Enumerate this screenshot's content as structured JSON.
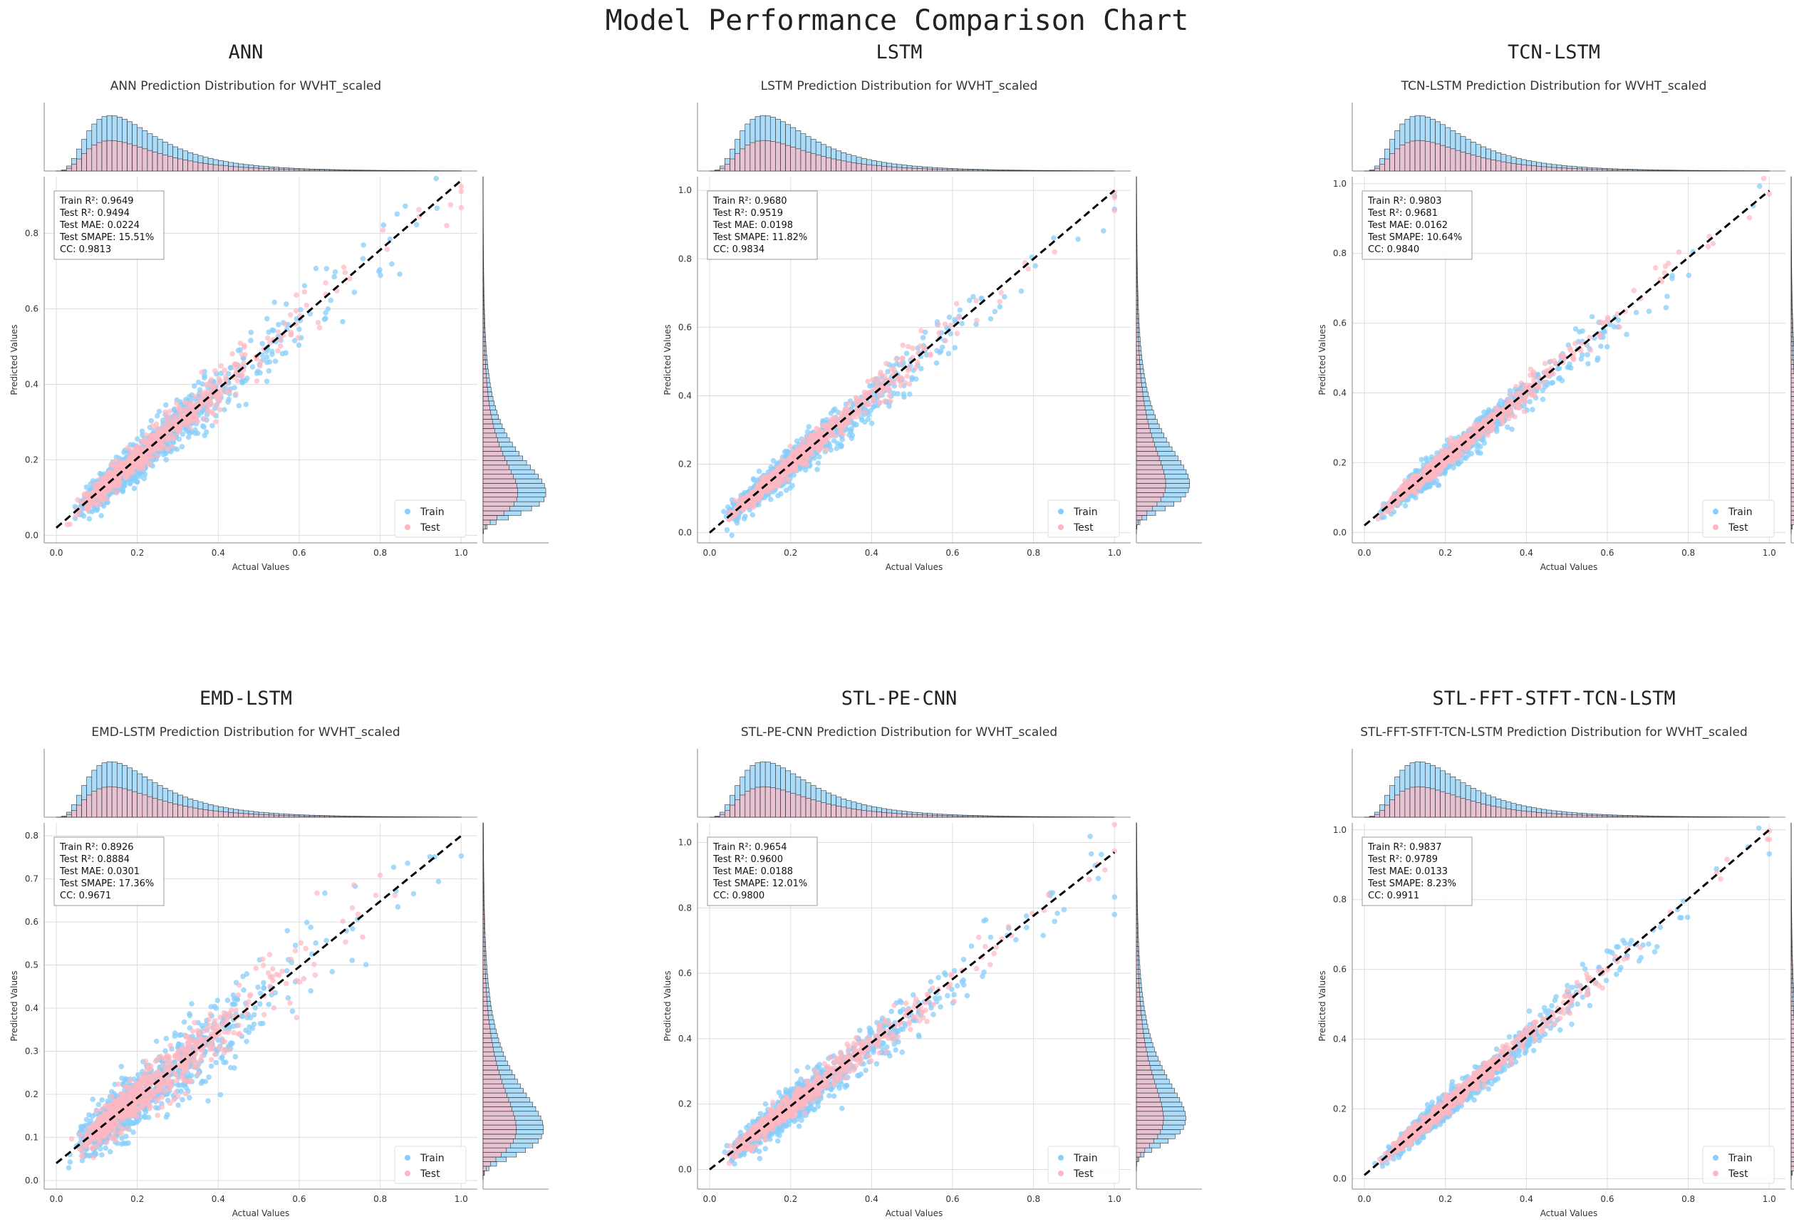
{
  "figure_title": "Model Performance Comparison Chart",
  "colors": {
    "train": "#87cefa",
    "test": "#ffb6c1",
    "grid": "#dddddd",
    "axis": "#888888",
    "diagonal": "#000000",
    "text": "#222222",
    "hist_edge": "#333333"
  },
  "legend_labels": {
    "train": "Train",
    "test": "Test"
  },
  "chart_data": [
    {
      "type": "scatter",
      "model": "ANN",
      "title": "ANN Prediction Distribution for WVHT_scaled",
      "xlabel": "Actual Values",
      "ylabel": "Predicted Values",
      "xlim": [
        -0.03,
        1.04
      ],
      "ylim": [
        -0.02,
        0.95
      ],
      "xticks": [
        "0.0",
        "0.2",
        "0.4",
        "0.6",
        "0.8",
        "1.0"
      ],
      "yticks": [
        "0.0",
        "0.2",
        "0.4",
        "0.6",
        "0.8"
      ],
      "fit_line": {
        "x": [
          0.0,
          1.0
        ],
        "y": [
          0.02,
          0.94
        ]
      },
      "stats": [
        "Train R²: 0.9649",
        "Test R²: 0.9494",
        "Test MAE: 0.0224",
        "Test SMAPE: 15.51%",
        "CC: 0.9813"
      ],
      "y_hist_peak": 0.16
    },
    {
      "type": "scatter",
      "model": "LSTM",
      "title": "LSTM Prediction Distribution for WVHT_scaled",
      "xlabel": "Actual Values",
      "ylabel": "Predicted Values",
      "xlim": [
        -0.03,
        1.04
      ],
      "ylim": [
        -0.03,
        1.04
      ],
      "xticks": [
        "0.0",
        "0.2",
        "0.4",
        "0.6",
        "0.8",
        "1.0"
      ],
      "yticks": [
        "0.0",
        "0.2",
        "0.4",
        "0.6",
        "0.8",
        "1.0"
      ],
      "fit_line": {
        "x": [
          0.0,
          1.0
        ],
        "y": [
          0.0,
          1.0
        ]
      },
      "stats": [
        "Train R²: 0.9680",
        "Test R²: 0.9519",
        "Test MAE: 0.0198",
        "Test SMAPE: 11.82%",
        "CC: 0.9834"
      ],
      "y_hist_peak": 0.2
    },
    {
      "type": "scatter",
      "model": "TCN-LSTM",
      "title": "TCN-LSTM Prediction Distribution for WVHT_scaled",
      "xlabel": "Actual Values",
      "ylabel": "Predicted Values",
      "xlim": [
        -0.03,
        1.04
      ],
      "ylim": [
        -0.03,
        1.02
      ],
      "xticks": [
        "0.0",
        "0.2",
        "0.4",
        "0.6",
        "0.8",
        "1.0"
      ],
      "yticks": [
        "0.0",
        "0.2",
        "0.4",
        "0.6",
        "0.8",
        "1.0"
      ],
      "fit_line": {
        "x": [
          0.0,
          1.0
        ],
        "y": [
          0.02,
          0.98
        ]
      },
      "stats": [
        "Train R²: 0.9803",
        "Test R²: 0.9681",
        "Test MAE: 0.0162",
        "Test SMAPE: 10.64%",
        "CC: 0.9840"
      ],
      "y_hist_peak": 0.17
    },
    {
      "type": "scatter",
      "model": "EMD-LSTM",
      "title": "EMD-LSTM Prediction Distribution for WVHT_scaled",
      "xlabel": "Actual Values",
      "ylabel": "Predicted Values",
      "xlim": [
        -0.03,
        1.04
      ],
      "ylim": [
        -0.02,
        0.83
      ],
      "xticks": [
        "0.0",
        "0.2",
        "0.4",
        "0.6",
        "0.8",
        "1.0"
      ],
      "yticks": [
        "0.0",
        "0.1",
        "0.2",
        "0.3",
        "0.4",
        "0.5",
        "0.6",
        "0.7",
        "0.8"
      ],
      "fit_line": {
        "x": [
          0.0,
          1.0
        ],
        "y": [
          0.04,
          0.8
        ]
      },
      "stats": [
        "Train R²: 0.8926",
        "Test R²: 0.8884",
        "Test MAE: 0.0301",
        "Test SMAPE: 17.36%",
        "CC: 0.9671"
      ],
      "y_hist_peak": 0.17
    },
    {
      "type": "scatter",
      "model": "STL-PE-CNN",
      "title": "STL-PE-CNN Prediction Distribution for WVHT_scaled",
      "xlabel": "Actual Values",
      "ylabel": "Predicted Values",
      "xlim": [
        -0.03,
        1.04
      ],
      "ylim": [
        -0.06,
        1.06
      ],
      "xticks": [
        "0.0",
        "0.2",
        "0.4",
        "0.6",
        "0.8",
        "1.0"
      ],
      "yticks": [
        "0.0",
        "0.2",
        "0.4",
        "0.6",
        "0.8",
        "1.0"
      ],
      "fit_line": {
        "x": [
          0.0,
          1.0
        ],
        "y": [
          0.0,
          0.97
        ]
      },
      "stats": [
        "Train R²: 0.9654",
        "Test R²: 0.9600",
        "Test MAE: 0.0188",
        "Test SMAPE: 12.01%",
        "CC: 0.9800"
      ],
      "y_hist_peak": 0.22
    },
    {
      "type": "scatter",
      "model": "STL-FFT-STFT-TCN-LSTM",
      "title": "STL-FFT-STFT-TCN-LSTM Prediction Distribution for WVHT_scaled",
      "xlabel": "Actual Values",
      "ylabel": "Predicted Values",
      "xlim": [
        -0.03,
        1.04
      ],
      "ylim": [
        -0.03,
        1.02
      ],
      "xticks": [
        "0.0",
        "0.2",
        "0.4",
        "0.6",
        "0.8",
        "1.0"
      ],
      "yticks": [
        "0.0",
        "0.2",
        "0.4",
        "0.6",
        "0.8",
        "1.0"
      ],
      "fit_line": {
        "x": [
          0.0,
          1.0
        ],
        "y": [
          0.01,
          1.0
        ]
      },
      "stats": [
        "Train R²: 0.9837",
        "Test R²: 0.9789",
        "Test MAE: 0.0133",
        "Test SMAPE: 8.23%",
        "CC: 0.9911"
      ],
      "y_hist_peak": 0.17
    }
  ]
}
